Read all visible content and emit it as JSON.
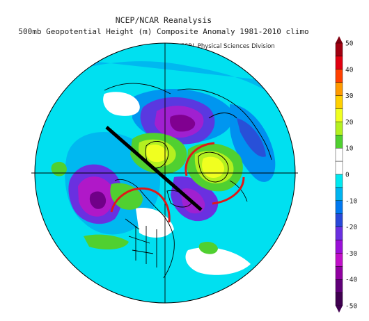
{
  "header": {
    "line1": "NCEP/NCAR Reanalysis",
    "line2": "500mb Geopotential Height (m) Composite Anomaly 1981-2010 climo",
    "credit": "NOAA/ESRL Physical Sciences Division"
  },
  "colorbar": {
    "tick_labels": [
      "50",
      "40",
      "30",
      "20",
      "10",
      "0",
      "-10",
      "-20",
      "-30",
      "-40",
      "-50"
    ],
    "colors": [
      "#a00010",
      "#e00010",
      "#ff4000",
      "#ff9a00",
      "#ffd000",
      "#f0ff20",
      "#b4f020",
      "#50d030",
      "#ffffff",
      "#ffffff",
      "#00e8f0",
      "#00b4f0",
      "#0078f0",
      "#2848d8",
      "#6a30e0",
      "#9a10d8",
      "#c010c8",
      "#9000a0",
      "#600078",
      "#400050"
    ]
  },
  "map": {
    "colors": {
      "ocean_background": "#00e0f0",
      "coastline": "#000000",
      "overlay_line": "#000000",
      "arc_annotation": "#e01818"
    }
  }
}
